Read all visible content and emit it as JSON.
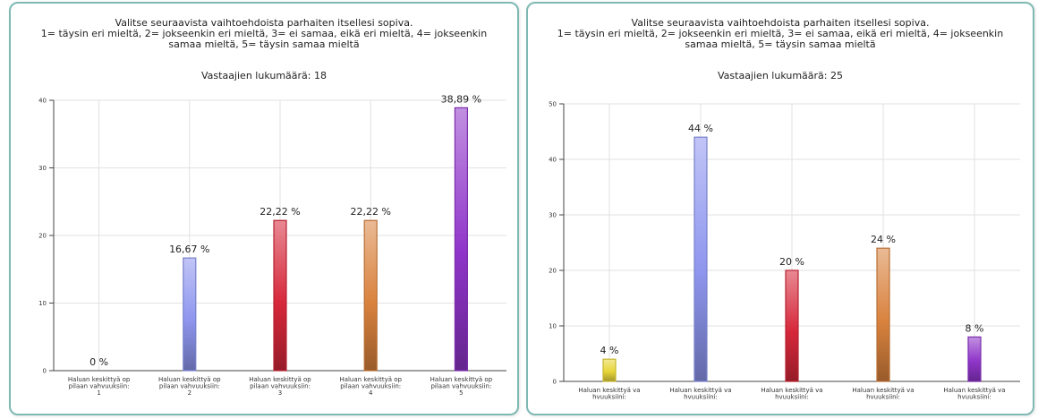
{
  "chart_data": [
    {
      "type": "bar",
      "title_lines": [
        "Valitse seuraavista vaihtoehdoista parhaiten itsellesi sopiva.",
        "1= täysin eri mieltä, 2= jokseenkin eri mieltä, 3= ei samaa, eikä eri mieltä, 4= jokseenkin",
        "samaa mieltä, 5= täysin samaa mieltä"
      ],
      "subtitle": "Vastaajien lukumäärä: 18",
      "categories": [
        [
          "Haluan keskittyä op",
          "pilaan vahvuuksiin:",
          "1"
        ],
        [
          "Haluan keskittyä op",
          "pilaan vahvuuksiin:",
          "2"
        ],
        [
          "Haluan keskittyä op",
          "pilaan vahvuuksiin:",
          "3"
        ],
        [
          "Haluan keskittyä op",
          "pilaan vahvuuksiin:",
          "4"
        ],
        [
          "Haluan keskittyä op",
          "pilaan vahvuuksiin:",
          "5"
        ]
      ],
      "values": [
        0,
        16.67,
        22.22,
        22.22,
        38.89
      ],
      "value_labels": [
        "0 %",
        "16,67 %",
        "22,22 %",
        "22,22 %",
        "38,89 %"
      ],
      "colors": [
        "#e8d63a",
        "#8e96ee",
        "#d6283a",
        "#d9823e",
        "#8f35c9"
      ],
      "ylim": [
        0,
        40
      ],
      "yticks": [
        0,
        10,
        20,
        30,
        40
      ],
      "grid": true
    },
    {
      "type": "bar",
      "title_lines": [
        "Valitse seuraavista vaihtoehdoista parhaiten itsellesi sopiva.",
        "1= täysin eri mieltä, 2= jokseenkin eri mieltä, 3= ei samaa, eikä eri mieltä, 4= jokseenkin",
        "samaa mieltä, 5= täysin samaa mieltä"
      ],
      "subtitle": "Vastaajien lukumäärä: 25",
      "categories": [
        [
          "Haluan keskittyä va",
          "hvuuksiini:"
        ],
        [
          "Haluan keskittyä va",
          "hvuuksiini:"
        ],
        [
          "Haluan keskittyä va",
          "hvuuksiini:"
        ],
        [
          "Haluan keskittyä va",
          "hvuuksiini:"
        ],
        [
          "Haluan keskittyä va",
          "hvuuksiini:"
        ]
      ],
      "values": [
        4,
        44,
        20,
        24,
        8
      ],
      "value_labels": [
        "4 %",
        "44 %",
        "20 %",
        "24 %",
        "8 %"
      ],
      "colors": [
        "#e8d63a",
        "#8e96ee",
        "#d6283a",
        "#d9823e",
        "#8f35c9"
      ],
      "ylim": [
        0,
        50
      ],
      "yticks": [
        0,
        10,
        20,
        30,
        40,
        50
      ],
      "grid": true
    }
  ]
}
